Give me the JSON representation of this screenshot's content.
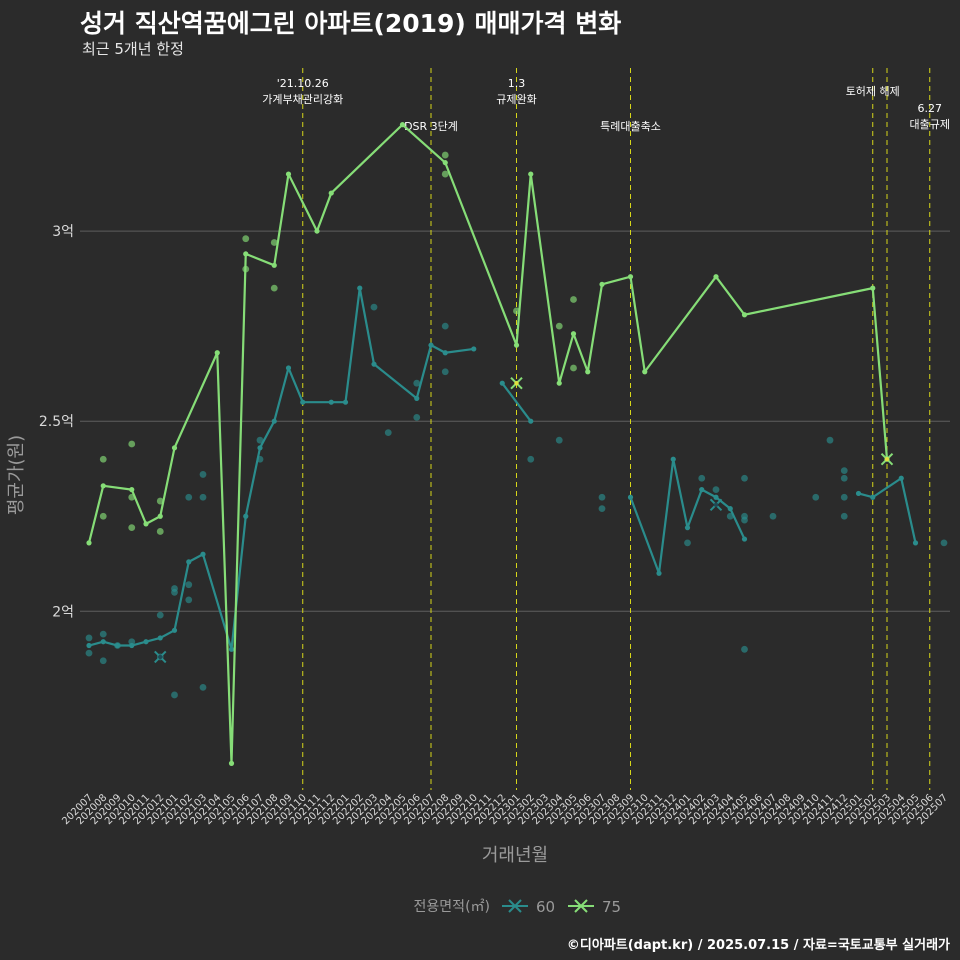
{
  "header": {
    "title": "성거 직산역꿈에그린 아파트(2019) 매매가격 변화",
    "subtitle": "최근 5개년 한정",
    "caption": "©디아파트(dapt.kr) / 2025.07.15 / 자료=국토교통부 실거래가"
  },
  "colors": {
    "background": "#2b2b2b",
    "grid": "#5e5e5e",
    "series_60": "#2a8c8c",
    "series_75": "#86dd77",
    "event_line": "#d6d61a",
    "axis_text": "#d9d9d9",
    "axis_title": "#9a9a9a"
  },
  "chart_data": {
    "type": "line",
    "xlabel": "거래년월",
    "ylabel": "평균가(원)",
    "months": [
      "202007",
      "202008",
      "202009",
      "202010",
      "202011",
      "202012",
      "202101",
      "202102",
      "202103",
      "202104",
      "202105",
      "202106",
      "202107",
      "202108",
      "202109",
      "202110",
      "202111",
      "202112",
      "202201",
      "202202",
      "202203",
      "202204",
      "202205",
      "202206",
      "202207",
      "202208",
      "202209",
      "202210",
      "202211",
      "202212",
      "202301",
      "202302",
      "202303",
      "202304",
      "202305",
      "202306",
      "202307",
      "202308",
      "202309",
      "202310",
      "202311",
      "202312",
      "202401",
      "202402",
      "202403",
      "202404",
      "202405",
      "202406",
      "202407",
      "202408",
      "202409",
      "202410",
      "202411",
      "202412",
      "202501",
      "202502",
      "202503",
      "202504",
      "202505",
      "202506",
      "202507"
    ],
    "y_ticks": [
      {
        "value": 2.0,
        "label": "2억"
      },
      {
        "value": 2.5,
        "label": "2.5억"
      },
      {
        "value": 3.0,
        "label": "3억"
      }
    ],
    "ylim": [
      1.53,
      3.45
    ],
    "grid": true,
    "legend": {
      "title": "전용면적(㎡)",
      "position": "bottom"
    },
    "events": [
      {
        "month": "202110",
        "label": "'21.10.26\n가계부채관리강화",
        "tier": 1
      },
      {
        "month": "202207",
        "label": "DSR 3단계",
        "tier": 2
      },
      {
        "month": "202301",
        "label": "1.3\n규제완화",
        "tier": 1
      },
      {
        "month": "202309",
        "label": "특례대출축소",
        "tier": 2
      },
      {
        "month": "202502",
        "label": "토허제 해제",
        "tier": 1
      },
      {
        "month": "202503",
        "label": "",
        "tier": 1
      },
      {
        "month": "202506",
        "label": "6.27\n대출규제",
        "tier": 3
      }
    ],
    "series": [
      {
        "name": "60",
        "line": [
          [
            "202007",
            1.91
          ],
          [
            "202008",
            1.92
          ],
          [
            "202009",
            1.91
          ],
          [
            "202010",
            1.91
          ],
          [
            "202011",
            1.92
          ],
          [
            "202012",
            1.93
          ],
          [
            "202101",
            1.95
          ],
          [
            "202102",
            2.13
          ],
          [
            "202103",
            2.15
          ],
          [
            "202105",
            1.9
          ],
          [
            "202106",
            2.25
          ],
          [
            "202107",
            2.43
          ],
          [
            "202108",
            2.5
          ],
          [
            "202109",
            2.64
          ],
          [
            "202110",
            2.55
          ],
          [
            "202112",
            2.55
          ],
          [
            "202201",
            2.55
          ],
          [
            "202202",
            2.85
          ],
          [
            "202203",
            2.65
          ],
          [
            "202206",
            2.56
          ],
          [
            "202207",
            2.7
          ],
          [
            "202208",
            2.68
          ],
          [
            "202210",
            2.69
          ],
          null,
          [
            "202212",
            2.6
          ],
          [
            "202302",
            2.5
          ],
          null,
          [
            "202309",
            2.3
          ],
          [
            "202311",
            2.1
          ],
          [
            "202312",
            2.4
          ],
          [
            "202401",
            2.22
          ],
          [
            "202402",
            2.32
          ],
          [
            "202403",
            2.3
          ],
          [
            "202404",
            2.27
          ],
          [
            "202405",
            2.19
          ],
          null,
          [
            "202501",
            2.31
          ],
          [
            "202502",
            2.3
          ],
          [
            "202504",
            2.35
          ],
          [
            "202505",
            2.18
          ]
        ],
        "points": [
          [
            "202007",
            1.93
          ],
          [
            "202007",
            1.89
          ],
          [
            "202008",
            1.94
          ],
          [
            "202008",
            1.87
          ],
          [
            "202009",
            1.91
          ],
          [
            "202010",
            1.92
          ],
          [
            "202012",
            1.88
          ],
          [
            "202012",
            1.99
          ],
          [
            "202101",
            2.05
          ],
          [
            "202101",
            2.06
          ],
          [
            "202101",
            1.78
          ],
          [
            "202102",
            2.03
          ],
          [
            "202102",
            2.07
          ],
          [
            "202102",
            2.3
          ],
          [
            "202103",
            2.36
          ],
          [
            "202103",
            1.8
          ],
          [
            "202103",
            2.3
          ],
          [
            "202107",
            2.45
          ],
          [
            "202107",
            2.4
          ],
          [
            "202203",
            2.8
          ],
          [
            "202204",
            2.47
          ],
          [
            "202206",
            2.51
          ],
          [
            "202206",
            2.6
          ],
          [
            "202208",
            2.75
          ],
          [
            "202208",
            2.63
          ],
          [
            "202302",
            2.4
          ],
          [
            "202304",
            2.45
          ],
          [
            "202307",
            2.3
          ],
          [
            "202307",
            2.27
          ],
          [
            "202401",
            2.18
          ],
          [
            "202402",
            2.35
          ],
          [
            "202403",
            2.32
          ],
          [
            "202404",
            2.25
          ],
          [
            "202405",
            2.35
          ],
          [
            "202405",
            2.25
          ],
          [
            "202405",
            2.24
          ],
          [
            "202405",
            1.9
          ],
          [
            "202407",
            2.25
          ],
          [
            "202410",
            2.3
          ],
          [
            "202411",
            2.45
          ],
          [
            "202412",
            2.37
          ],
          [
            "202412",
            2.35
          ],
          [
            "202412",
            2.3
          ],
          [
            "202412",
            2.25
          ],
          [
            "202507",
            2.18
          ]
        ],
        "markers": [
          [
            "202012",
            1.88
          ],
          [
            "202403",
            2.28
          ]
        ]
      },
      {
        "name": "75",
        "line": [
          [
            "202007",
            2.18
          ],
          [
            "202008",
            2.33
          ],
          [
            "202010",
            2.32
          ],
          [
            "202011",
            2.23
          ],
          [
            "202012",
            2.25
          ],
          [
            "202101",
            2.43
          ],
          [
            "202104",
            2.68
          ],
          [
            "202105",
            1.6
          ],
          [
            "202106",
            2.94
          ],
          [
            "202108",
            2.91
          ],
          [
            "202109",
            3.15
          ],
          [
            "202111",
            3.0
          ],
          [
            "202112",
            3.1
          ],
          [
            "202205",
            3.28
          ],
          [
            "202208",
            3.18
          ],
          [
            "202301",
            2.7
          ],
          [
            "202302",
            3.15
          ],
          [
            "202304",
            2.6
          ],
          [
            "202305",
            2.73
          ],
          [
            "202306",
            2.63
          ],
          [
            "202307",
            2.86
          ],
          [
            "202309",
            2.88
          ],
          [
            "202310",
            2.63
          ],
          [
            "202403",
            2.88
          ],
          [
            "202405",
            2.78
          ],
          [
            "202502",
            2.85
          ],
          [
            "202503",
            2.4
          ]
        ],
        "points": [
          [
            "202008",
            2.4
          ],
          [
            "202008",
            2.25
          ],
          [
            "202010",
            2.44
          ],
          [
            "202010",
            2.3
          ],
          [
            "202010",
            2.22
          ],
          [
            "202012",
            2.29
          ],
          [
            "202012",
            2.21
          ],
          [
            "202106",
            2.98
          ],
          [
            "202106",
            2.9
          ],
          [
            "202108",
            2.97
          ],
          [
            "202108",
            2.85
          ],
          [
            "202208",
            3.2
          ],
          [
            "202208",
            3.15
          ],
          [
            "202301",
            2.79
          ],
          [
            "202304",
            2.75
          ],
          [
            "202305",
            2.82
          ],
          [
            "202305",
            2.64
          ]
        ],
        "markers": [
          [
            "202301",
            2.6
          ],
          [
            "202503",
            2.4
          ]
        ]
      }
    ]
  }
}
